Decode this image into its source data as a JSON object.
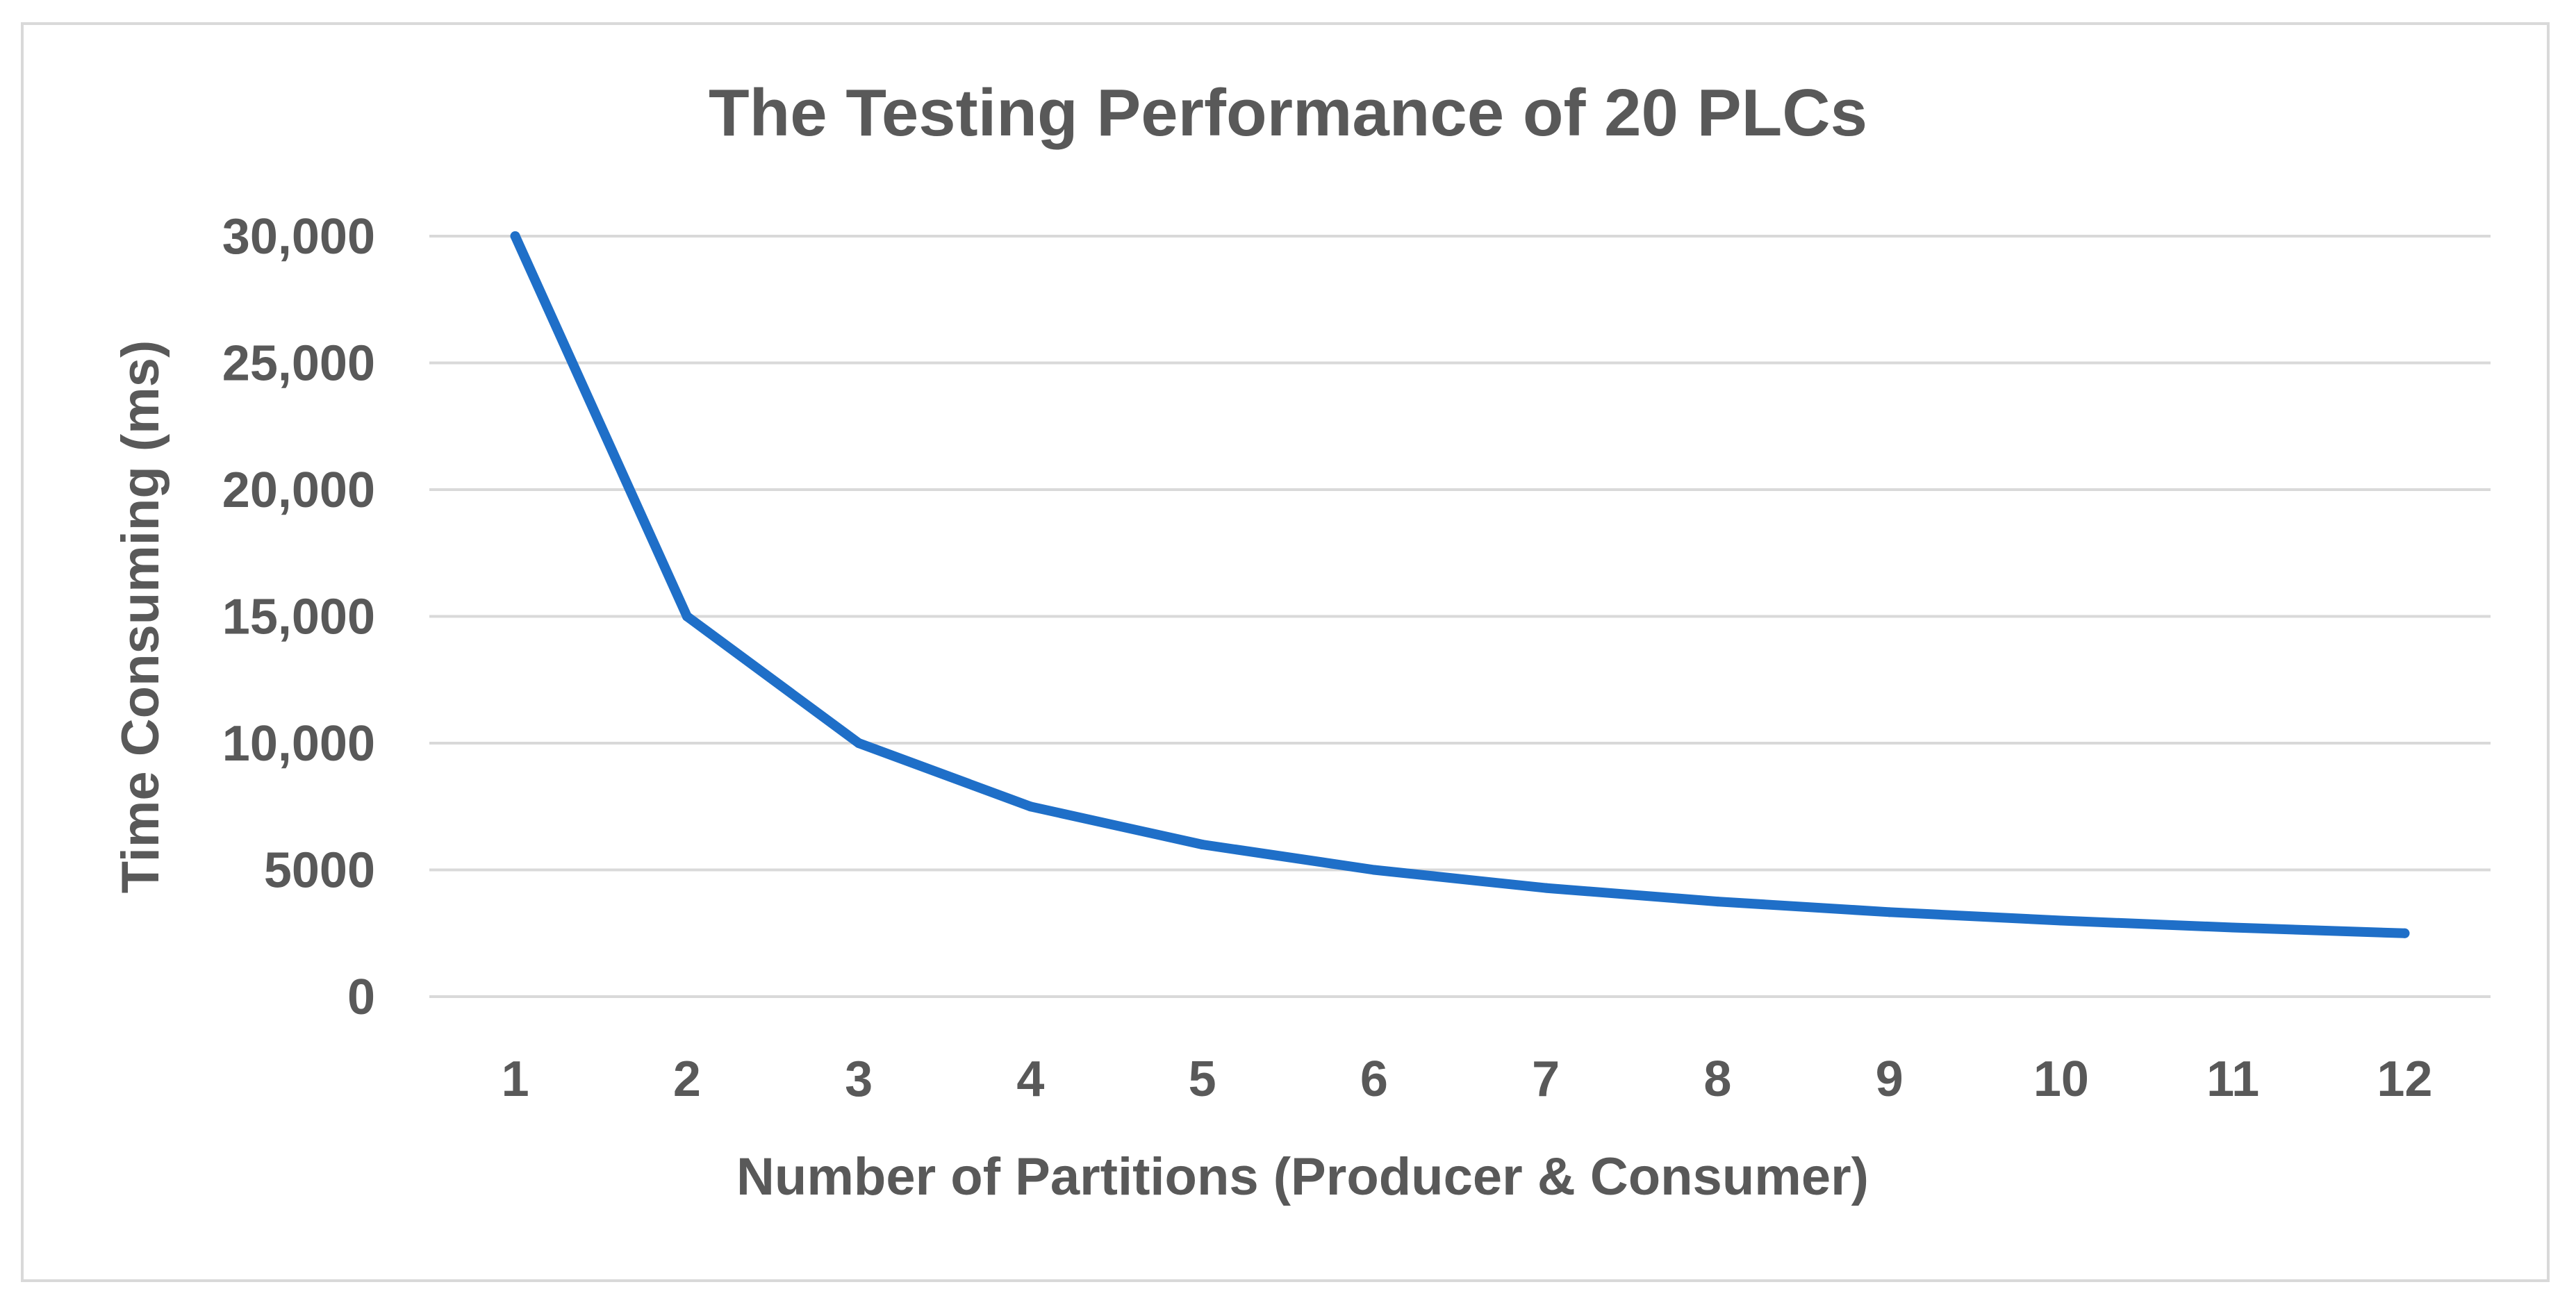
{
  "chart_data": {
    "type": "line",
    "title": "The Testing Performance of 20 PLCs",
    "xlabel": "Number of Partitions (Producer & Consumer)",
    "ylabel": "Time Consuming (ms)",
    "categories": [
      "1",
      "2",
      "3",
      "4",
      "5",
      "6",
      "7",
      "8",
      "9",
      "10",
      "11",
      "12"
    ],
    "series": [
      {
        "name": "Time Consuming",
        "color": "#1f6fc8",
        "values": [
          30000,
          15000,
          10000,
          7500,
          6000,
          5000,
          4286,
          3750,
          3333,
          3000,
          2727,
          2500
        ]
      }
    ],
    "ylim": [
      0,
      30000
    ],
    "yticks": [
      0,
      5000,
      10000,
      15000,
      20000,
      25000,
      30000
    ],
    "ytick_labels": [
      "0",
      "5000",
      "10,000",
      "15,000",
      "20,000",
      "25,000",
      "30,000"
    ],
    "grid": true,
    "legend": "none",
    "colors": {
      "text": "#595959",
      "grid": "#d9d9d9",
      "frame": "#d9d9d9",
      "line": "#1f6fc8"
    }
  }
}
